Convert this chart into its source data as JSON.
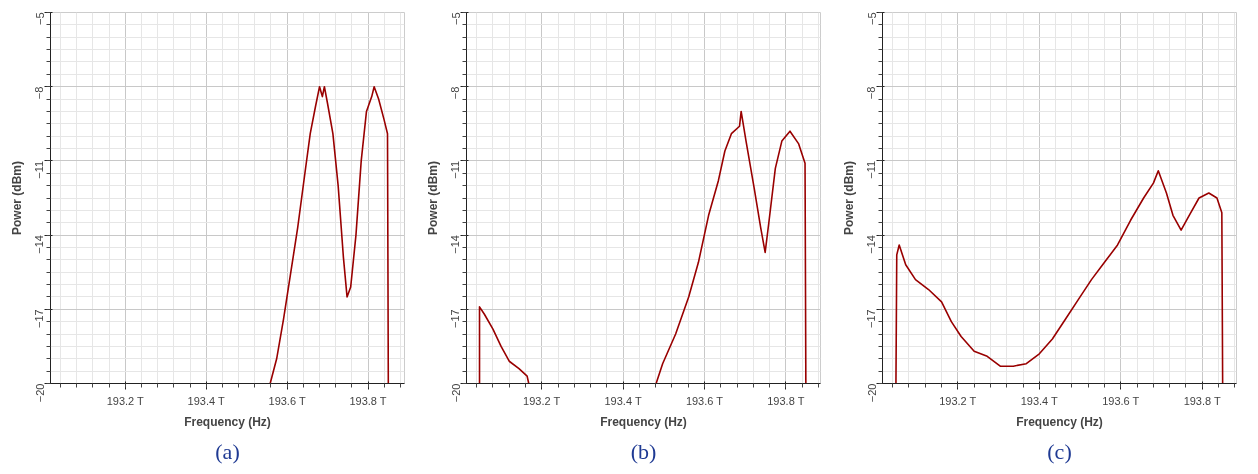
{
  "chart_data": [
    {
      "type": "line",
      "xlabel": "Frequency (Hz)",
      "ylabel": "Power (dBm)",
      "annotations": [
        "(a)"
      ],
      "grid": true,
      "xlim": [
        193.015,
        193.89
      ],
      "ylim": [
        -20,
        -5
      ],
      "xticks": [
        {
          "value": 193.2,
          "label": "193.2 T"
        },
        {
          "value": 193.4,
          "label": "193.4 T"
        },
        {
          "value": 193.6,
          "label": "193.6 T"
        },
        {
          "value": 193.8,
          "label": "193.8 T"
        }
      ],
      "yticks": [
        -5,
        -8,
        -11,
        -14,
        -17,
        -20
      ],
      "x": [
        193.558,
        193.574,
        193.591,
        193.609,
        193.626,
        193.643,
        193.657,
        193.67,
        193.68,
        193.687,
        193.692,
        193.7,
        193.713,
        193.726,
        193.739,
        193.748,
        193.757,
        193.77,
        193.783,
        193.796,
        193.809,
        193.815,
        193.826,
        193.839,
        193.848,
        193.85
      ],
      "series": [
        {
          "color": "#990000",
          "values": [
            -20,
            -19.0,
            -17.4,
            -15.5,
            -13.7,
            -11.6,
            -9.9,
            -8.8,
            -8.0,
            -8.4,
            -8.0,
            -8.7,
            -9.9,
            -12.0,
            -14.9,
            -16.5,
            -16.1,
            -14.0,
            -11.0,
            -9.0,
            -8.4,
            -8.0,
            -8.5,
            -9.3,
            -9.9,
            -20
          ]
        }
      ]
    },
    {
      "type": "line",
      "xlabel": "Frequency (Hz)",
      "ylabel": "Power (dBm)",
      "annotations": [
        "(b)"
      ],
      "grid": true,
      "xlim": [
        193.015,
        193.885
      ],
      "ylim": [
        -20,
        -5
      ],
      "xticks": [
        {
          "value": 193.2,
          "label": "193.2 T"
        },
        {
          "value": 193.4,
          "label": "193.4 T"
        },
        {
          "value": 193.6,
          "label": "193.6 T"
        },
        {
          "value": 193.8,
          "label": "193.8 T"
        }
      ],
      "yticks": [
        -5,
        -8,
        -11,
        -14,
        -17,
        -20
      ],
      "x": [
        193.047,
        193.047,
        193.059,
        193.08,
        193.1,
        193.12,
        193.144,
        193.164,
        193.168,
        193.3,
        193.481,
        193.497,
        193.529,
        193.561,
        193.585,
        193.61,
        193.634,
        193.65,
        193.666,
        193.686,
        193.69,
        193.702,
        193.722,
        193.738,
        193.749,
        193.758,
        193.774,
        193.79,
        193.81,
        193.831,
        193.847,
        193.849
      ],
      "series": [
        {
          "color": "#990000",
          "values": [
            -20,
            -16.9,
            -17.2,
            -17.8,
            -18.5,
            -19.1,
            -19.4,
            -19.7,
            -20,
            null,
            -20,
            -19.2,
            -18.0,
            -16.5,
            -15.1,
            -13.2,
            -11.8,
            -10.6,
            -9.9,
            -9.6,
            -9.0,
            -10.2,
            -12.1,
            -13.7,
            -14.7,
            -13.5,
            -11.3,
            -10.2,
            -9.8,
            -10.3,
            -11.1,
            -20
          ]
        }
      ]
    },
    {
      "type": "line",
      "xlabel": "Frequency (Hz)",
      "ylabel": "Power (dBm)",
      "annotations": [
        "(c)"
      ],
      "grid": true,
      "xlim": [
        193.015,
        193.884
      ],
      "ylim": [
        -20,
        -5
      ],
      "xticks": [
        {
          "value": 193.2,
          "label": "193.2 T"
        },
        {
          "value": 193.4,
          "label": "193.4 T"
        },
        {
          "value": 193.6,
          "label": "193.6 T"
        },
        {
          "value": 193.8,
          "label": "193.8 T"
        }
      ],
      "yticks": [
        -5,
        -8,
        -11,
        -14,
        -17,
        -20
      ],
      "x": [
        193.048,
        193.05,
        193.056,
        193.072,
        193.096,
        193.128,
        193.16,
        193.184,
        193.208,
        193.24,
        193.272,
        193.304,
        193.336,
        193.368,
        193.4,
        193.432,
        193.464,
        193.496,
        193.528,
        193.56,
        193.592,
        193.624,
        193.656,
        193.68,
        193.692,
        193.712,
        193.728,
        193.748,
        193.768,
        193.792,
        193.816,
        193.836,
        193.848,
        193.85
      ],
      "series": [
        {
          "color": "#990000",
          "values": [
            -20,
            -14.8,
            -14.4,
            -15.2,
            -15.8,
            -16.2,
            -16.7,
            -17.5,
            -18.1,
            -18.7,
            -18.9,
            -19.3,
            -19.3,
            -19.2,
            -18.8,
            -18.2,
            -17.4,
            -16.6,
            -15.8,
            -15.1,
            -14.4,
            -13.4,
            -12.5,
            -11.9,
            -11.4,
            -12.3,
            -13.2,
            -13.8,
            -13.2,
            -12.5,
            -12.3,
            -12.5,
            -13.1,
            -20
          ]
        }
      ]
    }
  ]
}
